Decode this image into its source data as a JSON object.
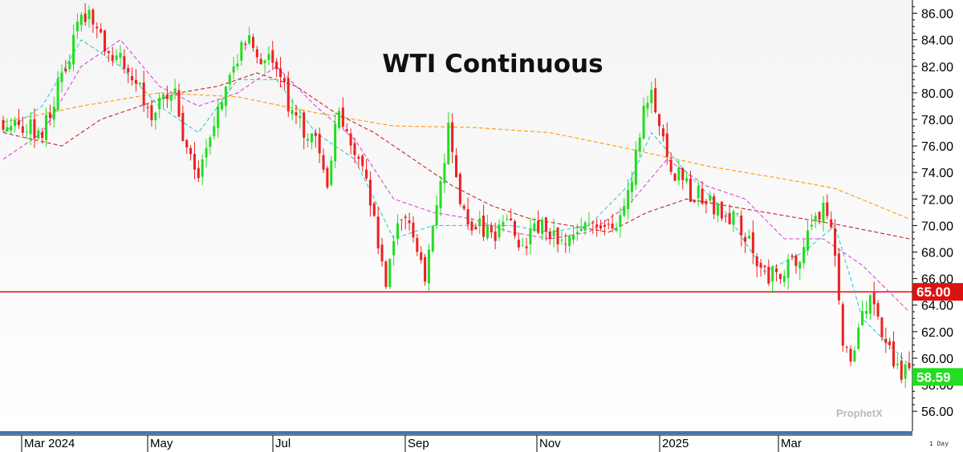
{
  "chart_data": {
    "type": "candlestick",
    "title": "WTI Continuous",
    "ylim": [
      54.5,
      87
    ],
    "y_ticks": [
      "86.00",
      "84.00",
      "82.00",
      "80.00",
      "78.00",
      "76.00",
      "74.00",
      "72.00",
      "70.00",
      "68.00",
      "66.00",
      "64.00",
      "62.00",
      "60.00",
      "58.00",
      "56.00"
    ],
    "x_labels": [
      "Mar 2024",
      "May",
      "Jul",
      "Sep",
      "Nov",
      "2025",
      "Mar"
    ],
    "horizontal_line": {
      "value": 65.0,
      "label": "65.00",
      "color": "#e02020"
    },
    "last_price": {
      "value": 58.59,
      "label": "58.59",
      "color": "#22dd22"
    },
    "up_color": "#22dd22",
    "down_color": "#ee2020",
    "period_label": "1 Day",
    "watermark": "ProphetX",
    "price_path": [
      [
        0,
        78
      ],
      [
        10,
        77
      ],
      [
        18,
        84
      ],
      [
        22,
        86.5
      ],
      [
        26,
        83
      ],
      [
        32,
        82
      ],
      [
        38,
        78.5
      ],
      [
        44,
        80
      ],
      [
        46,
        77
      ],
      [
        50,
        74
      ],
      [
        54,
        78
      ],
      [
        58,
        82
      ],
      [
        63,
        84
      ],
      [
        66,
        82
      ],
      [
        70,
        82.5
      ],
      [
        73,
        79
      ],
      [
        77,
        77
      ],
      [
        80,
        76
      ],
      [
        83,
        73
      ],
      [
        86,
        79
      ],
      [
        89,
        76.5
      ],
      [
        93,
        73
      ],
      [
        96,
        68.5
      ],
      [
        98,
        66
      ],
      [
        100,
        69
      ],
      [
        104,
        70.5
      ],
      [
        108,
        66
      ],
      [
        112,
        73
      ],
      [
        114,
        77
      ],
      [
        117,
        71
      ],
      [
        121,
        70
      ],
      [
        125,
        69
      ],
      [
        129,
        71
      ],
      [
        133,
        68
      ],
      [
        137,
        70
      ],
      [
        141,
        69
      ],
      [
        145,
        68.5
      ],
      [
        149,
        71
      ],
      [
        153,
        69.5
      ],
      [
        157,
        70
      ],
      [
        161,
        74
      ],
      [
        164,
        79
      ],
      [
        166,
        80.5
      ],
      [
        168,
        77
      ],
      [
        172,
        74
      ],
      [
        176,
        72.5
      ],
      [
        180,
        72
      ],
      [
        184,
        71
      ],
      [
        188,
        70.5
      ],
      [
        192,
        68
      ],
      [
        196,
        66
      ],
      [
        200,
        66.5
      ],
      [
        204,
        68
      ],
      [
        208,
        70
      ],
      [
        211,
        71.5
      ],
      [
        213,
        68.5
      ],
      [
        215,
        61
      ],
      [
        217,
        60
      ],
      [
        219,
        62
      ],
      [
        222,
        64.5
      ],
      [
        225,
        62
      ],
      [
        228,
        60
      ],
      [
        230,
        59
      ],
      [
        232,
        58.6
      ]
    ],
    "sma_short": {
      "color": "#33cccc",
      "points": [
        [
          0,
          77
        ],
        [
          10,
          79
        ],
        [
          20,
          84
        ],
        [
          30,
          82
        ],
        [
          40,
          79
        ],
        [
          50,
          77
        ],
        [
          60,
          81
        ],
        [
          70,
          81
        ],
        [
          80,
          77
        ],
        [
          90,
          75
        ],
        [
          100,
          69
        ],
        [
          110,
          70
        ],
        [
          120,
          70
        ],
        [
          130,
          70
        ],
        [
          140,
          69.5
        ],
        [
          150,
          70
        ],
        [
          160,
          73
        ],
        [
          166,
          77
        ],
        [
          175,
          74
        ],
        [
          185,
          71
        ],
        [
          195,
          66.5
        ],
        [
          205,
          68
        ],
        [
          213,
          70
        ],
        [
          220,
          63
        ],
        [
          232,
          59.5
        ]
      ]
    },
    "sma_mid": {
      "color": "#dd44dd",
      "points": [
        [
          0,
          75
        ],
        [
          10,
          77
        ],
        [
          20,
          82
        ],
        [
          30,
          84
        ],
        [
          40,
          80.5
        ],
        [
          50,
          79
        ],
        [
          60,
          80
        ],
        [
          70,
          82
        ],
        [
          80,
          79
        ],
        [
          90,
          76.5
        ],
        [
          100,
          72
        ],
        [
          110,
          71
        ],
        [
          120,
          70.5
        ],
        [
          130,
          69.5
        ],
        [
          140,
          69
        ],
        [
          150,
          69.5
        ],
        [
          160,
          71.5
        ],
        [
          170,
          75
        ],
        [
          180,
          73
        ],
        [
          190,
          72
        ],
        [
          200,
          69
        ],
        [
          210,
          69
        ],
        [
          220,
          67
        ],
        [
          232,
          63.5
        ]
      ]
    },
    "sma_long": {
      "color": "#cc2222",
      "points": [
        [
          0,
          77
        ],
        [
          15,
          76
        ],
        [
          25,
          78
        ],
        [
          35,
          79
        ],
        [
          45,
          80
        ],
        [
          55,
          80.5
        ],
        [
          65,
          81.5
        ],
        [
          75,
          80.5
        ],
        [
          85,
          78.5
        ],
        [
          95,
          77
        ],
        [
          105,
          75
        ],
        [
          115,
          73
        ],
        [
          125,
          71.5
        ],
        [
          135,
          70.5
        ],
        [
          145,
          70
        ],
        [
          155,
          69.5
        ],
        [
          165,
          71
        ],
        [
          175,
          72
        ],
        [
          185,
          71.5
        ],
        [
          195,
          71
        ],
        [
          205,
          70.5
        ],
        [
          215,
          70
        ],
        [
          232,
          69
        ]
      ]
    },
    "sma_xlong": {
      "color": "#ff9900",
      "points": [
        [
          0,
          77.8
        ],
        [
          20,
          79
        ],
        [
          40,
          80
        ],
        [
          60,
          79.7
        ],
        [
          80,
          78.5
        ],
        [
          100,
          77.5
        ],
        [
          120,
          77.4
        ],
        [
          140,
          77
        ],
        [
          160,
          75.8
        ],
        [
          180,
          74.5
        ],
        [
          200,
          73.5
        ],
        [
          213,
          72.8
        ],
        [
          232,
          70.5
        ]
      ]
    }
  }
}
